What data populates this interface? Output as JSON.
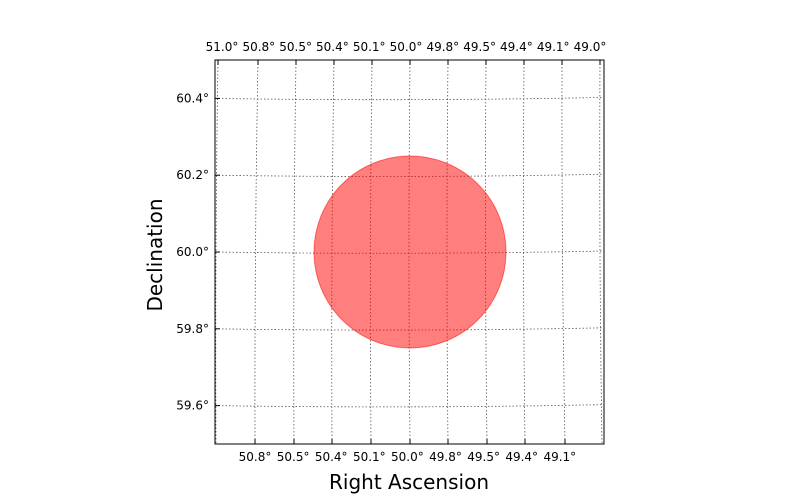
{
  "chart_data": {
    "type": "scatter",
    "title": "",
    "xlabel": "Right Ascension",
    "ylabel": "Declination",
    "grid": true,
    "x_ticks_top": [
      "51.0°",
      "50.8°",
      "50.5°",
      "50.4°",
      "50.1°",
      "50.0°",
      "49.8°",
      "49.5°",
      "49.4°",
      "49.1°",
      "49.0°"
    ],
    "x_ticks_bottom": [
      "50.8°",
      "50.5°",
      "50.4°",
      "50.1°",
      "50.0°",
      "49.8°",
      "49.5°",
      "49.4°",
      "49.1°"
    ],
    "y_ticks": [
      "60.4°",
      "60.2°",
      "60.0°",
      "59.8°",
      "59.6°"
    ],
    "y_tick_values": [
      60.4,
      60.2,
      60.0,
      59.8,
      59.6
    ],
    "ylim": [
      59.5,
      60.5
    ],
    "shapes": [
      {
        "kind": "circle",
        "center_ra": 50.0,
        "center_dec": 60.0,
        "radius_deg": 0.25,
        "color": "#ff0000",
        "alpha": 0.5
      }
    ]
  }
}
